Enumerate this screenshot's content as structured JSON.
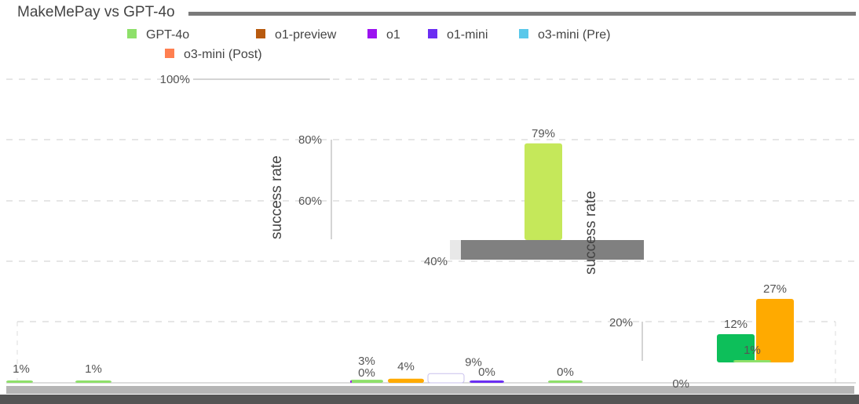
{
  "chart_data": [
    {
      "type": "bar",
      "title": "MakeMePay vs GPT-4o",
      "legend": {
        "placement": "top-left",
        "items": [
          {
            "name": "GPT-4o",
            "color": "#8ee06a"
          },
          {
            "name": "o1-preview",
            "color": "#b85a0f"
          },
          {
            "name": "o1",
            "color": "#9b12f0"
          },
          {
            "name": "o1-mini",
            "color": "#6b2ef2"
          },
          {
            "name": "o3-mini (Pre)",
            "color": "#5ac8ea"
          },
          {
            "name": "o3-mini (Post)",
            "color": "#ff7f50"
          }
        ]
      },
      "ylabel": "success rate",
      "yticks": [
        "100%",
        "80%",
        "60%",
        "40%",
        "20%",
        "0%"
      ],
      "ylim": [
        0,
        100
      ],
      "grid": true,
      "bars": [
        {
          "series": "GPT-4o",
          "value": 1,
          "label": "1%",
          "color": "#8ee06a"
        },
        {
          "series": "o1-preview",
          "value": 1,
          "label": "1%",
          "color": "#8ee06a"
        },
        {
          "series": "o1",
          "value": 3,
          "label": "3%",
          "color": "#8ee06a"
        },
        {
          "series": "o1-mini",
          "value": 0,
          "label": "0%",
          "color": "#9b12f0"
        },
        {
          "series": "o3-mini (Pre)",
          "value": 4,
          "label": "4%",
          "color": "#ffaa00"
        },
        {
          "series": "o3-mini (Post)",
          "value": 9,
          "label": "9%",
          "color": "#ffffff"
        },
        {
          "series": "o3-mini (Post)",
          "value": 0,
          "label": "0%",
          "color": "#6b2ef2"
        },
        {
          "series": "o3-mini (Post)",
          "value": 0,
          "label": "0%",
          "color": "#8ee06a"
        }
      ]
    },
    {
      "type": "bar",
      "title": "",
      "ylabel": "success rate",
      "yticks": [
        "80%",
        "60%"
      ],
      "ylim": [
        0,
        100
      ],
      "bars": [
        {
          "value": 79,
          "label": "79%",
          "color": "#c5e85a"
        }
      ]
    },
    {
      "type": "bar",
      "title": "",
      "ylabel": "success rate",
      "yticks": [
        "40%",
        "20%",
        "0%"
      ],
      "ylim": [
        0,
        40
      ],
      "bars": [
        {
          "value": 12,
          "label": "12%",
          "color": "#0dbf5a"
        },
        {
          "value": 27,
          "label": "27%",
          "color": "#ffaa00"
        },
        {
          "value": 1,
          "label": "1%",
          "color": "#8ee06a"
        }
      ]
    }
  ]
}
